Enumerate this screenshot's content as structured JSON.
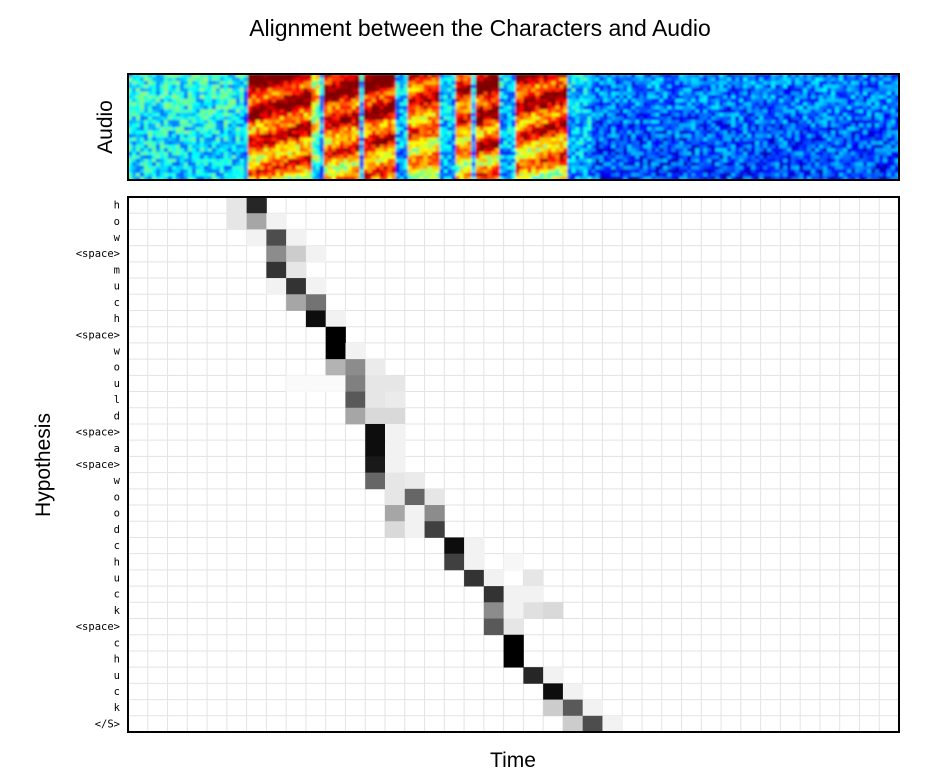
{
  "chart_data": {
    "type": "heatmap",
    "title": "Alignment between the Characters and Audio",
    "spectrogram_label": "Audio",
    "xlabel": "Time",
    "ylabel": "Hypothesis",
    "num_time_frames": 39,
    "grid": true,
    "colormap_spectrogram": "jet",
    "colormap_alignment": "greys",
    "rows": [
      {
        "label": "h",
        "cells": [
          [
            5,
            0.1
          ],
          [
            6,
            0.85
          ]
        ]
      },
      {
        "label": "o",
        "cells": [
          [
            5,
            0.1
          ],
          [
            6,
            0.35
          ],
          [
            7,
            0.05
          ]
        ]
      },
      {
        "label": "w",
        "cells": [
          [
            6,
            0.05
          ],
          [
            7,
            0.7
          ],
          [
            8,
            0.05
          ]
        ]
      },
      {
        "label": "<space>",
        "cells": [
          [
            7,
            0.45
          ],
          [
            8,
            0.2
          ],
          [
            9,
            0.05
          ]
        ]
      },
      {
        "label": "m",
        "cells": [
          [
            7,
            0.8
          ],
          [
            8,
            0.1
          ]
        ]
      },
      {
        "label": "u",
        "cells": [
          [
            7,
            0.05
          ],
          [
            8,
            0.8
          ],
          [
            9,
            0.05
          ]
        ]
      },
      {
        "label": "c",
        "cells": [
          [
            8,
            0.35
          ],
          [
            9,
            0.55
          ]
        ]
      },
      {
        "label": "h",
        "cells": [
          [
            9,
            0.95
          ],
          [
            10,
            0.05
          ]
        ]
      },
      {
        "label": "<space>",
        "cells": [
          [
            10,
            1.0
          ]
        ]
      },
      {
        "label": "w",
        "cells": [
          [
            10,
            1.0
          ],
          [
            11,
            0.05
          ]
        ]
      },
      {
        "label": "o",
        "cells": [
          [
            10,
            0.3
          ],
          [
            11,
            0.45
          ],
          [
            12,
            0.08
          ]
        ]
      },
      {
        "label": "u",
        "cells": [
          [
            8,
            0.02
          ],
          [
            9,
            0.02
          ],
          [
            10,
            0.02
          ],
          [
            11,
            0.5
          ],
          [
            12,
            0.1
          ],
          [
            13,
            0.1
          ]
        ]
      },
      {
        "label": "l",
        "cells": [
          [
            11,
            0.65
          ],
          [
            12,
            0.1
          ],
          [
            13,
            0.08
          ]
        ]
      },
      {
        "label": "d",
        "cells": [
          [
            11,
            0.35
          ],
          [
            12,
            0.15
          ],
          [
            13,
            0.15
          ]
        ]
      },
      {
        "label": "<space>",
        "cells": [
          [
            12,
            0.95
          ],
          [
            13,
            0.05
          ]
        ]
      },
      {
        "label": "a",
        "cells": [
          [
            12,
            0.95
          ],
          [
            13,
            0.05
          ]
        ]
      },
      {
        "label": "<space>",
        "cells": [
          [
            12,
            0.9
          ],
          [
            13,
            0.05
          ]
        ]
      },
      {
        "label": "w",
        "cells": [
          [
            12,
            0.6
          ],
          [
            13,
            0.1
          ],
          [
            14,
            0.08
          ]
        ]
      },
      {
        "label": "o",
        "cells": [
          [
            13,
            0.1
          ],
          [
            14,
            0.6
          ],
          [
            15,
            0.1
          ]
        ]
      },
      {
        "label": "o",
        "cells": [
          [
            13,
            0.35
          ],
          [
            14,
            0.05
          ],
          [
            15,
            0.45
          ]
        ]
      },
      {
        "label": "d",
        "cells": [
          [
            13,
            0.15
          ],
          [
            14,
            0.05
          ],
          [
            15,
            0.75
          ]
        ]
      },
      {
        "label": "c",
        "cells": [
          [
            16,
            0.95
          ],
          [
            17,
            0.05
          ]
        ]
      },
      {
        "label": "h",
        "cells": [
          [
            16,
            0.75
          ],
          [
            17,
            0.05
          ],
          [
            19,
            0.03
          ]
        ]
      },
      {
        "label": "u",
        "cells": [
          [
            17,
            0.8
          ],
          [
            18,
            0.05
          ],
          [
            20,
            0.1
          ]
        ]
      },
      {
        "label": "c",
        "cells": [
          [
            18,
            0.8
          ],
          [
            19,
            0.05
          ],
          [
            20,
            0.05
          ]
        ]
      },
      {
        "label": "k",
        "cells": [
          [
            18,
            0.45
          ],
          [
            19,
            0.05
          ],
          [
            20,
            0.12
          ],
          [
            21,
            0.15
          ]
        ]
      },
      {
        "label": "<space>",
        "cells": [
          [
            18,
            0.65
          ],
          [
            19,
            0.1
          ]
        ]
      },
      {
        "label": "c",
        "cells": [
          [
            19,
            1.0
          ]
        ]
      },
      {
        "label": "h",
        "cells": [
          [
            19,
            1.0
          ]
        ]
      },
      {
        "label": "u",
        "cells": [
          [
            20,
            0.85
          ],
          [
            21,
            0.05
          ]
        ]
      },
      {
        "label": "c",
        "cells": [
          [
            21,
            0.95
          ],
          [
            22,
            0.05
          ]
        ]
      },
      {
        "label": "k",
        "cells": [
          [
            21,
            0.2
          ],
          [
            22,
            0.65
          ],
          [
            23,
            0.05
          ]
        ]
      },
      {
        "label": "</S>",
        "cells": [
          [
            22,
            0.2
          ],
          [
            23,
            0.7
          ],
          [
            24,
            0.05
          ]
        ]
      }
    ]
  }
}
